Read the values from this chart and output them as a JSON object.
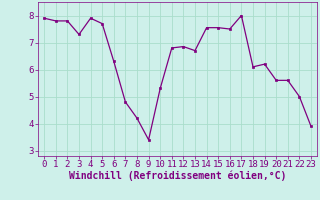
{
  "x": [
    0,
    1,
    2,
    3,
    4,
    5,
    6,
    7,
    8,
    9,
    10,
    11,
    12,
    13,
    14,
    15,
    16,
    17,
    18,
    19,
    20,
    21,
    22,
    23
  ],
  "y": [
    7.9,
    7.8,
    7.8,
    7.3,
    7.9,
    7.7,
    6.3,
    4.8,
    4.2,
    3.4,
    5.3,
    6.8,
    6.85,
    6.7,
    7.55,
    7.55,
    7.5,
    8.0,
    6.1,
    6.2,
    5.6,
    5.6,
    5.0,
    3.9
  ],
  "xlabel": "Windchill (Refroidissement éolien,°C)",
  "ylim": [
    2.8,
    8.5
  ],
  "xlim": [
    -0.5,
    23.5
  ],
  "yticks": [
    3,
    4,
    5,
    6,
    7,
    8
  ],
  "xticks": [
    0,
    1,
    2,
    3,
    4,
    5,
    6,
    7,
    8,
    9,
    10,
    11,
    12,
    13,
    14,
    15,
    16,
    17,
    18,
    19,
    20,
    21,
    22,
    23
  ],
  "line_color": "#800080",
  "marker_color": "#800080",
  "bg_color": "#cef0ea",
  "grid_color": "#aaddcc",
  "xlabel_fontsize": 7,
  "tick_fontsize": 6.5
}
